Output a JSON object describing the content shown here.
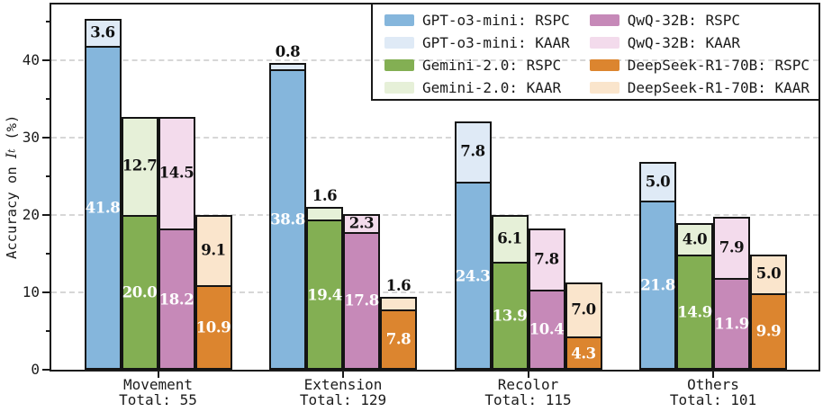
{
  "chart_data": {
    "type": "bar",
    "variant": "grouped-stacked",
    "title": "",
    "xlabel": "",
    "ylabel": "Accuracy on I_t (%)",
    "ylabel_parts": {
      "prefix": "Accuracy on ",
      "math": "I",
      "sub": "t",
      "suffix": " (%)"
    },
    "ylim": [
      0,
      47.2
    ],
    "yticks": [
      0,
      10,
      20,
      30,
      40
    ],
    "minor_yticks": [
      5,
      15,
      25,
      35,
      45
    ],
    "grid": "horizontal dashed at major yticks",
    "legend_position": "upper right, 2 columns, transparent background, black border",
    "categories": [
      {
        "label": "Movement",
        "total": "Total: 55"
      },
      {
        "label": "Extension",
        "total": "Total: 129"
      },
      {
        "label": "Recolor",
        "total": "Total: 115"
      },
      {
        "label": "Others",
        "total": "Total: 101"
      }
    ],
    "models": [
      {
        "name": "GPT-o3-mini",
        "rspc_color": "#85b6dc",
        "kaar_color": "#dfeaf6",
        "rspc": [
          41.8,
          38.8,
          24.3,
          21.8
        ],
        "kaar": [
          3.6,
          0.8,
          7.8,
          5.0
        ]
      },
      {
        "name": "Gemini-2.0",
        "rspc_color": "#83af53",
        "kaar_color": "#e6f0d8",
        "rspc": [
          20.0,
          19.4,
          13.9,
          14.9
        ],
        "kaar": [
          12.7,
          1.6,
          6.1,
          4.0
        ]
      },
      {
        "name": "QwQ-32B",
        "rspc_color": "#c689b8",
        "kaar_color": "#f3dbec",
        "rspc": [
          18.2,
          17.8,
          10.4,
          11.9
        ],
        "kaar": [
          14.5,
          2.3,
          7.8,
          7.9
        ]
      },
      {
        "name": "DeepSeek-R1-70B",
        "rspc_color": "#dc852f",
        "kaar_color": "#fae5cc",
        "rspc": [
          10.9,
          7.8,
          4.3,
          9.9
        ],
        "kaar": [
          9.1,
          1.6,
          7.0,
          5.0
        ]
      }
    ],
    "legend": [
      {
        "label": "GPT-o3-mini: RSPC",
        "color": "#85b6dc"
      },
      {
        "label": "GPT-o3-mini: KAAR",
        "color": "#dfeaf6"
      },
      {
        "label": "Gemini-2.0: RSPC",
        "color": "#83af53"
      },
      {
        "label": "Gemini-2.0: KAAR",
        "color": "#e6f0d8"
      },
      {
        "label": "QwQ-32B: RSPC",
        "color": "#c689b8"
      },
      {
        "label": "QwQ-32B: KAAR",
        "color": "#f3dbec"
      },
      {
        "label": "DeepSeek-R1-70B: RSPC",
        "color": "#dc852f"
      },
      {
        "label": "DeepSeek-R1-70B: KAAR",
        "color": "#fae5cc"
      }
    ]
  }
}
